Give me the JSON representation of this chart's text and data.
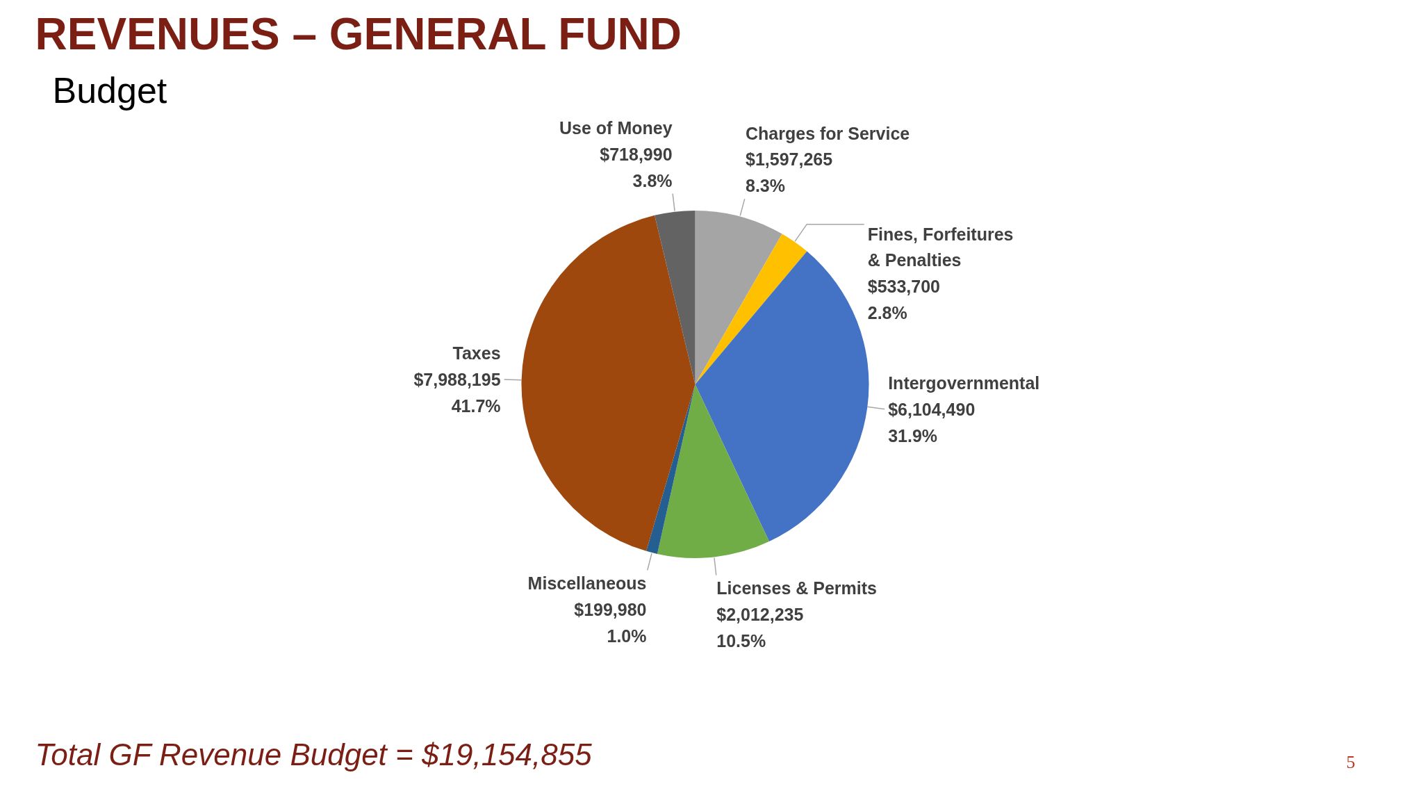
{
  "chart_data": {
    "type": "pie",
    "title": "REVENUES – GENERAL FUND",
    "subtitle": "Budget",
    "categories": [
      "Charges for Service",
      "Fines, Forfeitures\n& Penalties",
      "Intergovernmental",
      "Licenses & Permits",
      "Miscellaneous",
      "Taxes",
      "Use of Money"
    ],
    "values": [
      1597265,
      533700,
      6104490,
      2012235,
      199980,
      7988195,
      718990
    ],
    "value_labels": [
      "$1,597,265\n8.3%",
      "$533,700\n2.8%",
      "$6,104,490\n31.9%",
      "$2,012,235\n10.5%",
      "$199,980\n1.0%",
      "$7,988,195\n41.7%",
      "$718,990\n3.8%"
    ],
    "colors": [
      "#a5a5a5",
      "#ffc000",
      "#4472c4",
      "#70ad47",
      "#255e91",
      "#9e480e",
      "#636363"
    ],
    "annotations": [
      "Total GF Revenue Budget = $19,154,855",
      "5"
    ],
    "legend": false
  }
}
